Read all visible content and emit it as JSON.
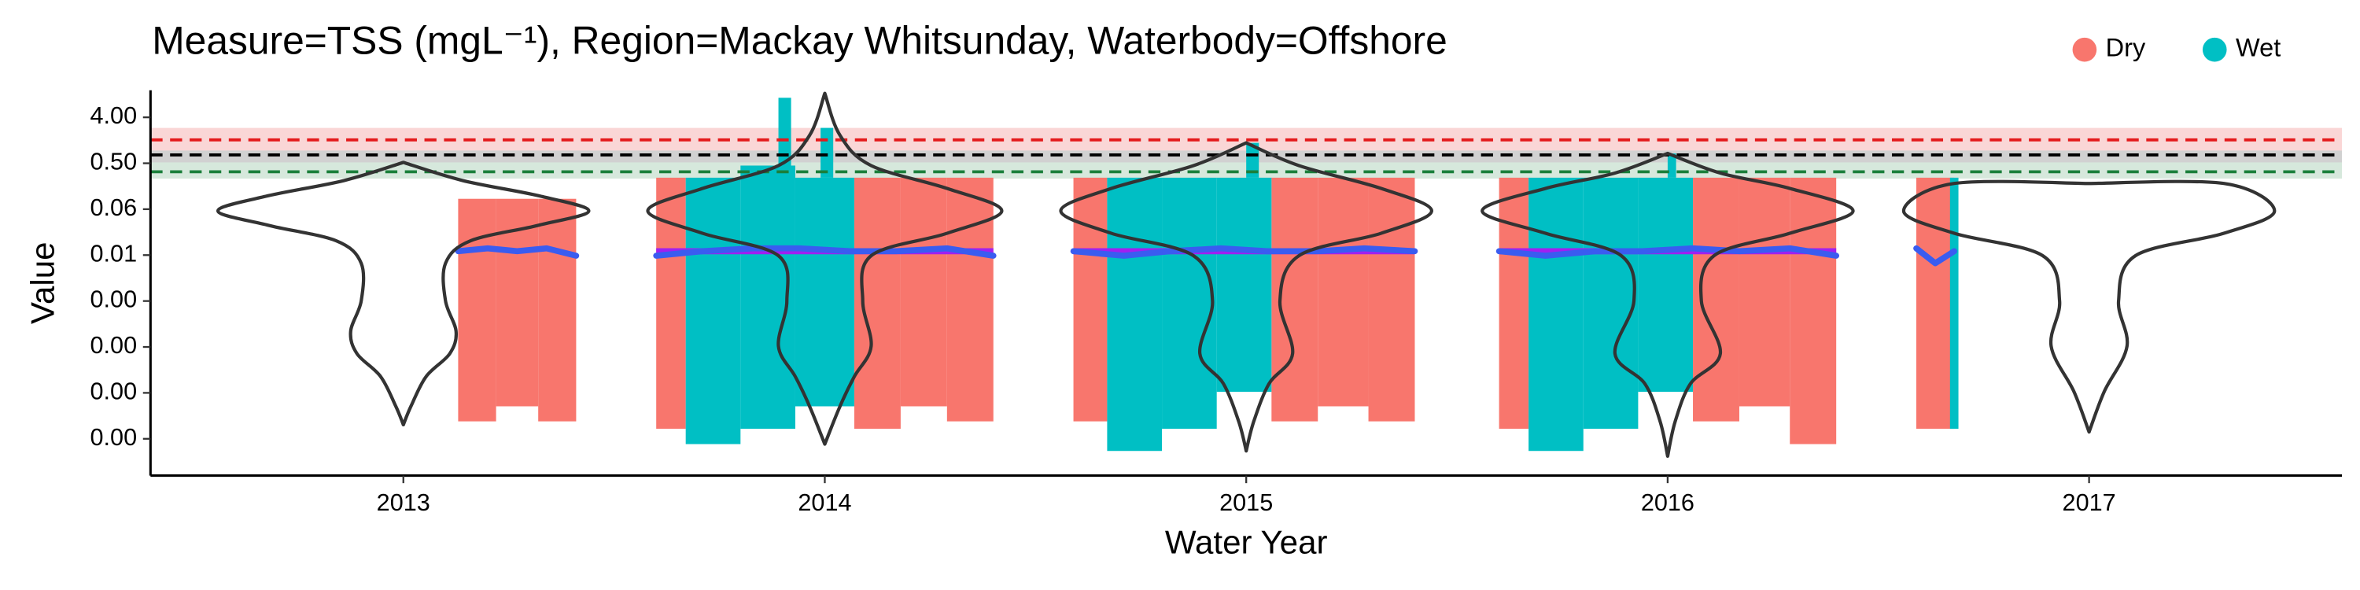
{
  "chart_data": {
    "type": "violin",
    "title": "Measure=TSS (mgL⁻¹), Region=Mackay Whitsunday, Waterbody=Offshore",
    "x_label": "Water Year",
    "y_label": "Value",
    "log_y": true,
    "legend_position": "top-right",
    "xlim": [
      2012.4,
      2017.6
    ],
    "xticks": [
      2013,
      2014,
      2015,
      2016,
      2017
    ],
    "ylim": [
      3.6e-07,
      13.6
    ],
    "yticks": [
      {
        "value": 4,
        "label": "4.00"
      },
      {
        "value": 0.5,
        "label": "0.50"
      },
      {
        "value": 0.0625,
        "label": "0.06"
      },
      {
        "value": 0.0078125,
        "label": "0.01"
      },
      {
        "value": 0.0009765625,
        "label": "0.00"
      },
      {
        "value": 0.0001220703125,
        "label": "0.00"
      },
      {
        "value": 1.52587890625e-05,
        "label": "0.00"
      },
      {
        "value": 1.9073486328125e-06,
        "label": "0.00"
      }
    ],
    "guidelines": [
      {
        "value": 1.44,
        "band": [
          0.89,
          2.48
        ],
        "color": "#e41a1c"
      },
      {
        "value": 0.73,
        "band": [
          0.52,
          0.89
        ],
        "color": "#000000"
      },
      {
        "value": 0.34,
        "band": [
          0.25,
          0.52
        ],
        "color": "#1b7f3b"
      }
    ],
    "series": [
      {
        "name": "Dry",
        "color": "#f8766d",
        "ranges": [
          {
            "x0": 2013.13,
            "x1": 2013.22,
            "low": 4.2e-06,
            "high": 0.1
          },
          {
            "x0": 2013.22,
            "x1": 2013.32,
            "low": 8.3e-06,
            "high": 0.1
          },
          {
            "x0": 2013.32,
            "x1": 2013.41,
            "low": 4.2e-06,
            "high": 0.1
          },
          {
            "x0": 2013.6,
            "x1": 2013.67,
            "low": 3e-06,
            "high": 0.26
          },
          {
            "x0": 2014.07,
            "x1": 2014.18,
            "low": 3e-06,
            "high": 0.26
          },
          {
            "x0": 2014.18,
            "x1": 2014.29,
            "low": 8.3e-06,
            "high": 0.26
          },
          {
            "x0": 2014.29,
            "x1": 2014.4,
            "low": 4.2e-06,
            "high": 0.26
          },
          {
            "x0": 2014.59,
            "x1": 2014.67,
            "low": 4.2e-06,
            "high": 0.26
          },
          {
            "x0": 2015.06,
            "x1": 2015.17,
            "low": 4.2e-06,
            "high": 0.26
          },
          {
            "x0": 2015.17,
            "x1": 2015.29,
            "low": 8.3e-06,
            "high": 0.26
          },
          {
            "x0": 2015.29,
            "x1": 2015.4,
            "low": 4.2e-06,
            "high": 0.26
          },
          {
            "x0": 2015.6,
            "x1": 2015.67,
            "low": 3e-06,
            "high": 0.26
          },
          {
            "x0": 2016.06,
            "x1": 2016.17,
            "low": 4.2e-06,
            "high": 0.26
          },
          {
            "x0": 2016.17,
            "x1": 2016.29,
            "low": 8.3e-06,
            "high": 0.26
          },
          {
            "x0": 2016.29,
            "x1": 2016.4,
            "low": 1.5e-06,
            "high": 0.26
          },
          {
            "x0": 2016.59,
            "x1": 2016.68,
            "low": 3e-06,
            "high": 0.26
          }
        ]
      },
      {
        "name": "Wet",
        "color": "#00bfc4",
        "ranges": [
          {
            "x0": 2013.67,
            "x1": 2013.8,
            "low": 1.5e-06,
            "high": 0.26
          },
          {
            "x0": 2013.8,
            "x1": 2013.93,
            "low": 3e-06,
            "high": 0.45
          },
          {
            "x0": 2013.93,
            "x1": 2014.07,
            "low": 8.3e-06,
            "high": 0.26
          },
          {
            "x0": 2013.89,
            "x1": 2013.92,
            "low": 0.26,
            "high": 9.7
          },
          {
            "x0": 2013.99,
            "x1": 2014.02,
            "low": 0.26,
            "high": 2.48
          },
          {
            "x0": 2014.67,
            "x1": 2014.8,
            "low": 1.1e-06,
            "high": 0.26
          },
          {
            "x0": 2014.8,
            "x1": 2014.93,
            "low": 3e-06,
            "high": 0.26
          },
          {
            "x0": 2014.93,
            "x1": 2015.06,
            "low": 1.6e-05,
            "high": 0.26
          },
          {
            "x0": 2015.0,
            "x1": 2015.03,
            "low": 0.26,
            "high": 1.26
          },
          {
            "x0": 2015.67,
            "x1": 2015.8,
            "low": 1.1e-06,
            "high": 0.26
          },
          {
            "x0": 2015.8,
            "x1": 2015.93,
            "low": 3e-06,
            "high": 0.26
          },
          {
            "x0": 2015.93,
            "x1": 2016.06,
            "low": 1.6e-05,
            "high": 0.26
          },
          {
            "x0": 2016.0,
            "x1": 2016.02,
            "low": 0.26,
            "high": 0.78
          },
          {
            "x0": 2016.67,
            "x1": 2016.69,
            "low": 3e-06,
            "high": 0.26
          }
        ]
      }
    ],
    "violins": [
      {
        "x": 2013,
        "values": [
          0.52,
          0.23,
          0.115,
          0.058,
          0.03,
          0.015,
          0.0054,
          0.00098,
          0.00025,
          9e-05,
          3.2e-05,
          8.3e-06,
          3.6e-06
        ],
        "widths": [
          0,
          0.14,
          0.32,
          0.44,
          0.32,
          0.16,
          0.1,
          0.1,
          0.125,
          0.11,
          0.054,
          0.018,
          0
        ]
      },
      {
        "x": 2014,
        "values": [
          11.9,
          1.77,
          0.45,
          0.16,
          0.058,
          0.021,
          0.0076,
          0.00098,
          0.000126,
          3.2e-05,
          8.3e-06,
          1.5e-06
        ],
        "widths": [
          0,
          0.036,
          0.11,
          0.29,
          0.42,
          0.29,
          0.11,
          0.09,
          0.11,
          0.07,
          0.036,
          0
        ]
      },
      {
        "x": 2015,
        "values": [
          1.26,
          0.45,
          0.16,
          0.058,
          0.021,
          0.0076,
          0.00098,
          9e-05,
          2.3e-05,
          4.2e-06,
          1.1e-06
        ],
        "widths": [
          0,
          0.125,
          0.32,
          0.44,
          0.32,
          0.125,
          0.08,
          0.11,
          0.054,
          0.018,
          0
        ]
      },
      {
        "x": 2016,
        "values": [
          0.78,
          0.32,
          0.16,
          0.058,
          0.021,
          0.0076,
          0.00098,
          9e-05,
          2.3e-05,
          4.2e-06,
          8.7e-07
        ],
        "widths": [
          0,
          0.125,
          0.29,
          0.44,
          0.29,
          0.11,
          0.08,
          0.125,
          0.054,
          0.018,
          0
        ]
      },
      {
        "x": 2017,
        "values": [
          0.2,
          0.2,
          0.058,
          0.021,
          0.0076,
          0.00098,
          0.000126,
          1.63e-05,
          2.6e-06
        ],
        "widths": [
          0,
          0.32,
          0.44,
          0.32,
          0.11,
          0.07,
          0.09,
          0.036,
          0
        ]
      }
    ],
    "trend": {
      "color": "#3a5cf0",
      "x": [
        2013.13,
        2013.2,
        2013.27,
        2013.34,
        2013.41,
        null,
        2013.6,
        2013.71,
        2013.83,
        2013.94,
        2014.06,
        2014.17,
        2014.29,
        2014.4,
        null,
        2014.59,
        2014.71,
        2014.82,
        2014.94,
        2015.05,
        2015.17,
        2015.28,
        2015.4,
        null,
        2015.6,
        2015.71,
        2015.83,
        2015.94,
        2016.06,
        2016.17,
        2016.29,
        2016.4,
        null,
        2016.59,
        2016.635,
        2016.68
      ],
      "values": [
        0.0093,
        0.0106,
        0.0093,
        0.0106,
        0.0076,
        null,
        0.0076,
        0.0093,
        0.0106,
        0.0106,
        0.0093,
        0.0093,
        0.0106,
        0.0076,
        null,
        0.0093,
        0.0076,
        0.0093,
        0.0106,
        0.0093,
        0.0093,
        0.0106,
        0.0093,
        null,
        0.0093,
        0.0076,
        0.0093,
        0.0093,
        0.0106,
        0.0093,
        0.0106,
        0.0076,
        null,
        0.0106,
        0.0054,
        0.0093
      ]
    },
    "medians": {
      "color": "#a020f0",
      "segments": [
        {
          "x0": 2013.6,
          "x1": 2014.4,
          "value": 0.0093
        },
        {
          "x0": 2014.59,
          "x1": 2015.4,
          "value": 0.0093
        },
        {
          "x0": 2015.6,
          "x1": 2016.4,
          "value": 0.0093
        }
      ]
    }
  }
}
